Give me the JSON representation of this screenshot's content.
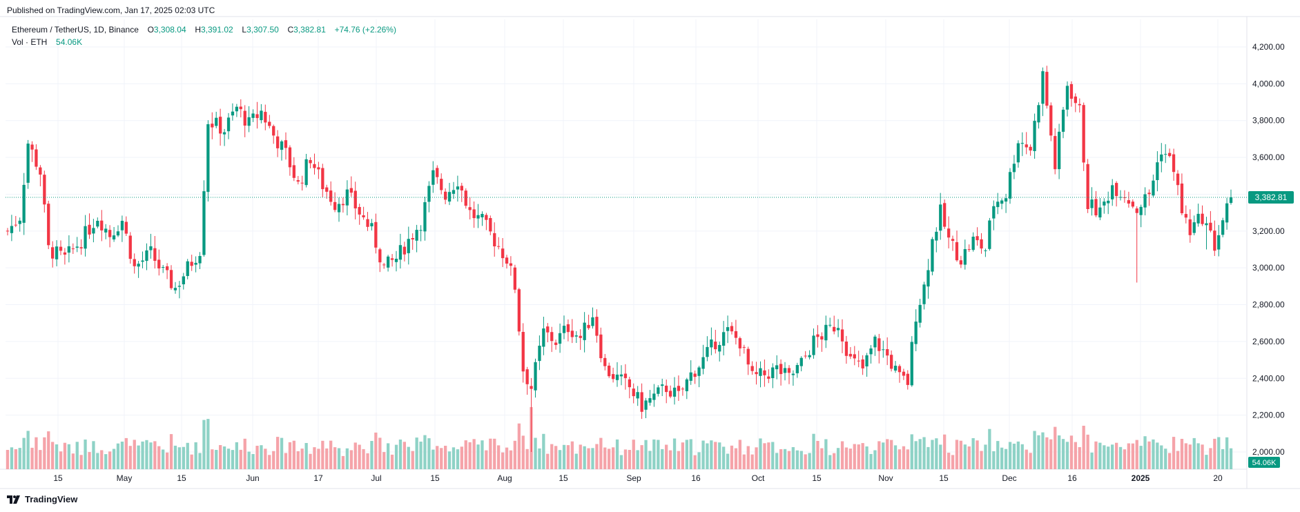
{
  "header": {
    "published": "Published on TradingView.com, Jan 17, 2025 02:03 UTC"
  },
  "legend": {
    "symbol": "Ethereum / TetherUS, 1D, Binance",
    "o_label": "O",
    "o_value": "3,308.04",
    "h_label": "H",
    "h_value": "3,391.02",
    "l_label": "L",
    "l_value": "3,307.50",
    "c_label": "C",
    "c_value": "3,382.81",
    "change": "+74.76 (+2.26%)",
    "vol_label": "Vol · ETH",
    "vol_value": "54.06K"
  },
  "footer": {
    "brand": "TradingView"
  },
  "colors": {
    "up": "#089981",
    "down": "#F23645",
    "up_vol": "#8ED2C6",
    "down_vol": "#F5A3A9",
    "grid": "#F0F3FA",
    "text": "#131722"
  },
  "chart_data": {
    "type": "candlestick",
    "title": "Ethereum / TetherUS, 1D, Binance",
    "x_tick_labels": [
      "15",
      "May",
      "15",
      "Jun",
      "17",
      "Jul",
      "15",
      "Aug",
      "15",
      "Sep",
      "16",
      "Oct",
      "15",
      "Nov",
      "15",
      "Dec",
      "16",
      "2025",
      "20"
    ],
    "y_tick_labels": [
      "2,000.00",
      "2,200.00",
      "2,400.00",
      "2,600.00",
      "2,800.00",
      "3,000.00",
      "3,200.00",
      "3,400.00",
      "3,600.00",
      "3,800.00",
      "4,000.00",
      "4,200.00"
    ],
    "ylim": [
      1900,
      4300
    ],
    "last_price": "3,382.81",
    "last_price_value": 3382.81,
    "last_volume": "54.06K",
    "grid": true,
    "price_path": [
      [
        0,
        3200
      ],
      [
        3,
        3280
      ],
      [
        5,
        3680
      ],
      [
        8,
        3520
      ],
      [
        10,
        3100
      ],
      [
        14,
        3050
      ],
      [
        18,
        3150
      ],
      [
        22,
        3280
      ],
      [
        25,
        3180
      ],
      [
        28,
        3260
      ],
      [
        31,
        3000
      ],
      [
        35,
        3080
      ],
      [
        38,
        2970
      ],
      [
        41,
        2890
      ],
      [
        44,
        3000
      ],
      [
        47,
        3100
      ],
      [
        49,
        3800
      ],
      [
        53,
        3750
      ],
      [
        56,
        3870
      ],
      [
        59,
        3780
      ],
      [
        62,
        3850
      ],
      [
        65,
        3720
      ],
      [
        68,
        3620
      ],
      [
        71,
        3450
      ],
      [
        74,
        3600
      ],
      [
        77,
        3450
      ],
      [
        80,
        3350
      ],
      [
        83,
        3400
      ],
      [
        86,
        3300
      ],
      [
        89,
        3200
      ],
      [
        92,
        3000
      ],
      [
        95,
        3050
      ],
      [
        98,
        3150
      ],
      [
        101,
        3250
      ],
      [
        104,
        3500
      ],
      [
        107,
        3400
      ],
      [
        110,
        3480
      ],
      [
        113,
        3300
      ],
      [
        116,
        3250
      ],
      [
        119,
        3150
      ],
      [
        122,
        3050
      ],
      [
        124,
        2900
      ],
      [
        126,
        2450
      ],
      [
        128,
        2350
      ],
      [
        131,
        2650
      ],
      [
        134,
        2600
      ],
      [
        137,
        2680
      ],
      [
        140,
        2620
      ],
      [
        143,
        2750
      ],
      [
        146,
        2450
      ],
      [
        149,
        2400
      ],
      [
        152,
        2350
      ],
      [
        155,
        2250
      ],
      [
        158,
        2300
      ],
      [
        161,
        2350
      ],
      [
        164,
        2300
      ],
      [
        167,
        2420
      ],
      [
        170,
        2500
      ],
      [
        173,
        2600
      ],
      [
        176,
        2650
      ],
      [
        179,
        2600
      ],
      [
        182,
        2400
      ],
      [
        185,
        2420
      ],
      [
        188,
        2450
      ],
      [
        191,
        2400
      ],
      [
        194,
        2480
      ],
      [
        197,
        2600
      ],
      [
        200,
        2650
      ],
      [
        203,
        2700
      ],
      [
        206,
        2500
      ],
      [
        209,
        2450
      ],
      [
        212,
        2600
      ],
      [
        215,
        2520
      ],
      [
        218,
        2400
      ],
      [
        220,
        2380
      ],
      [
        222,
        2750
      ],
      [
        224,
        2900
      ],
      [
        226,
        3150
      ],
      [
        228,
        3300
      ],
      [
        230,
        3150
      ],
      [
        233,
        3050
      ],
      [
        236,
        3150
      ],
      [
        239,
        3100
      ],
      [
        241,
        3350
      ],
      [
        244,
        3400
      ],
      [
        247,
        3700
      ],
      [
        250,
        3650
      ],
      [
        253,
        4050
      ],
      [
        256,
        3550
      ],
      [
        259,
        4000
      ],
      [
        262,
        3850
      ],
      [
        264,
        3350
      ],
      [
        267,
        3300
      ],
      [
        270,
        3450
      ],
      [
        273,
        3400
      ],
      [
        276,
        3320
      ],
      [
        279,
        3400
      ],
      [
        282,
        3650
      ],
      [
        285,
        3550
      ],
      [
        287,
        3300
      ],
      [
        289,
        3200
      ],
      [
        292,
        3280
      ],
      [
        295,
        3120
      ],
      [
        297,
        3260
      ],
      [
        299,
        3380
      ]
    ]
  }
}
